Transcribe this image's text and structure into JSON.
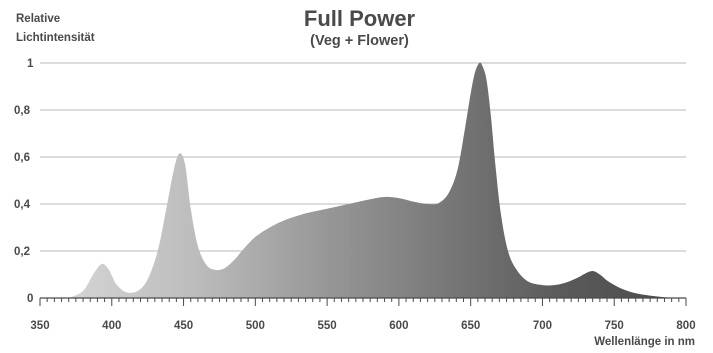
{
  "chart_data": {
    "type": "area",
    "title": "Full Power",
    "subtitle": "(Veg + Flower)",
    "ylabel_line1": "Relative",
    "ylabel_line2": "Lichtintensität",
    "xlabel": "Wellenlänge in nm",
    "xlim": [
      350,
      800
    ],
    "ylim": [
      0,
      1
    ],
    "x_ticks": [
      350,
      400,
      450,
      500,
      550,
      600,
      650,
      700,
      750,
      800
    ],
    "y_ticks": [
      {
        "value": 0,
        "label": "0"
      },
      {
        "value": 0.2,
        "label": "0,2"
      },
      {
        "value": 0.4,
        "label": "0,4"
      },
      {
        "value": 0.6,
        "label": "0,6"
      },
      {
        "value": 0.8,
        "label": "0,8"
      },
      {
        "value": 1,
        "label": "1"
      }
    ],
    "grid": true,
    "x": [
      370,
      380,
      387,
      393,
      398,
      403,
      410,
      418,
      425,
      432,
      438,
      443,
      447,
      451,
      455,
      460,
      466,
      472,
      478,
      485,
      492,
      500,
      510,
      520,
      535,
      550,
      565,
      580,
      590,
      600,
      610,
      620,
      628,
      635,
      641,
      646,
      650,
      653,
      656,
      658,
      661,
      664,
      667,
      671,
      676,
      682,
      690,
      700,
      708,
      716,
      724,
      730,
      735,
      740,
      746,
      755,
      765,
      775,
      785,
      795,
      800
    ],
    "y": [
      0.0,
      0.03,
      0.1,
      0.145,
      0.12,
      0.06,
      0.025,
      0.03,
      0.08,
      0.2,
      0.38,
      0.54,
      0.615,
      0.57,
      0.38,
      0.22,
      0.14,
      0.12,
      0.125,
      0.16,
      0.21,
      0.26,
      0.3,
      0.33,
      0.36,
      0.38,
      0.4,
      0.42,
      0.43,
      0.425,
      0.41,
      0.4,
      0.405,
      0.45,
      0.55,
      0.72,
      0.87,
      0.96,
      1.0,
      0.99,
      0.93,
      0.78,
      0.58,
      0.36,
      0.2,
      0.12,
      0.07,
      0.055,
      0.055,
      0.065,
      0.085,
      0.105,
      0.115,
      0.1,
      0.07,
      0.04,
      0.02,
      0.01,
      0.003,
      0.0,
      0.0
    ],
    "fill_gradient": [
      "#d4d4d4",
      "#bdbdbd",
      "#9a9a9a",
      "#7a7a7a",
      "#5a5a5a",
      "#4a4a4a"
    ],
    "grid_color": "#b9b9b9",
    "axis_color": "#4a4a4a"
  }
}
